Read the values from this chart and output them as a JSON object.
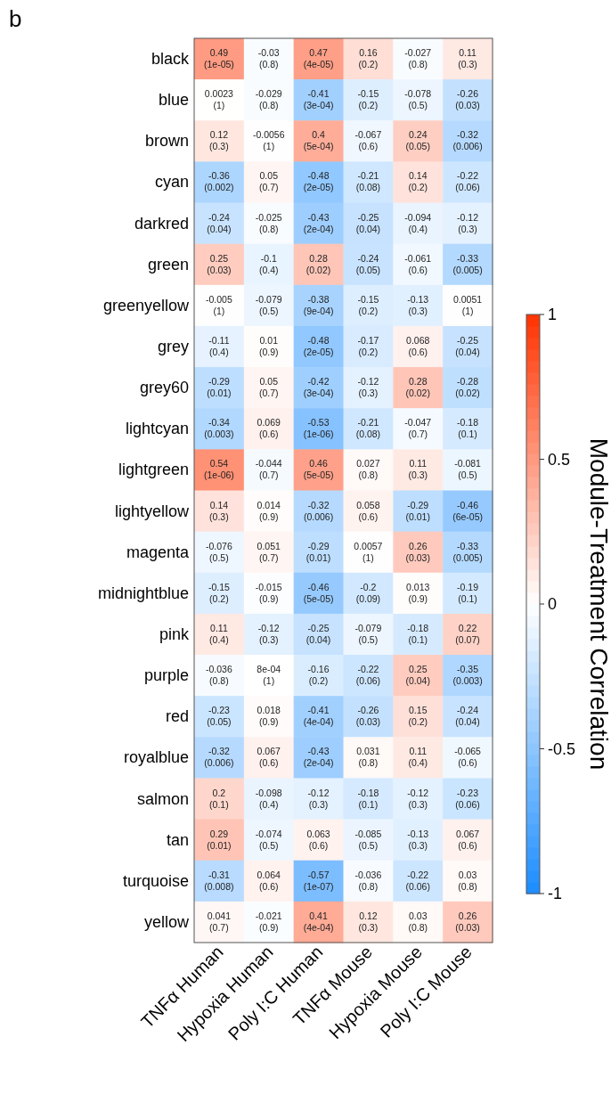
{
  "chart_data": {
    "type": "heatmap",
    "title": "b",
    "clabel": "Module-Treatment Correlation",
    "categories": [
      "TNFα Human",
      "Hypoxia Human",
      "Poly I:C Human",
      "TNFα Mouse",
      "Hypoxia Mouse",
      "Poly I:C Mouse"
    ],
    "y_categories": [
      "black",
      "blue",
      "brown",
      "cyan",
      "darkred",
      "green",
      "greenyellow",
      "grey",
      "grey60",
      "lightcyan",
      "lightgreen",
      "lightyellow",
      "magenta",
      "midnightblue",
      "pink",
      "purple",
      "red",
      "royalblue",
      "salmon",
      "tan",
      "turquoise",
      "yellow"
    ],
    "cells": [
      [
        0.49,
        -0.03,
        0.47,
        0.16,
        -0.027,
        0.11
      ],
      [
        0.0023,
        -0.029,
        -0.41,
        -0.15,
        -0.078,
        -0.26
      ],
      [
        0.12,
        -0.0056,
        0.4,
        -0.067,
        0.24,
        -0.32
      ],
      [
        -0.36,
        0.05,
        -0.48,
        -0.21,
        0.14,
        -0.22
      ],
      [
        -0.24,
        -0.025,
        -0.43,
        -0.25,
        -0.094,
        -0.12
      ],
      [
        0.25,
        -0.1,
        0.28,
        -0.24,
        -0.061,
        -0.33
      ],
      [
        -0.005,
        -0.079,
        -0.38,
        -0.15,
        -0.13,
        0.0051
      ],
      [
        -0.11,
        0.01,
        -0.48,
        -0.17,
        0.068,
        -0.25
      ],
      [
        -0.29,
        0.05,
        -0.42,
        -0.12,
        0.28,
        -0.28
      ],
      [
        -0.34,
        0.069,
        -0.53,
        -0.21,
        -0.047,
        -0.18
      ],
      [
        0.54,
        -0.044,
        0.46,
        0.027,
        0.11,
        -0.081
      ],
      [
        0.14,
        0.014,
        -0.32,
        0.058,
        -0.29,
        -0.46
      ],
      [
        -0.076,
        0.051,
        -0.29,
        0.0057,
        0.26,
        -0.33
      ],
      [
        -0.15,
        -0.015,
        -0.46,
        -0.2,
        0.013,
        -0.19
      ],
      [
        0.11,
        -0.12,
        -0.25,
        -0.079,
        -0.18,
        0.22
      ],
      [
        -0.036,
        0.0008,
        -0.16,
        -0.22,
        0.25,
        -0.35
      ],
      [
        -0.23,
        0.018,
        -0.41,
        -0.26,
        0.15,
        -0.24
      ],
      [
        -0.32,
        0.067,
        -0.43,
        0.031,
        0.11,
        -0.065
      ],
      [
        0.2,
        -0.098,
        -0.12,
        -0.18,
        -0.12,
        -0.23
      ],
      [
        0.29,
        -0.074,
        0.063,
        -0.085,
        -0.13,
        0.067
      ],
      [
        -0.31,
        0.064,
        -0.57,
        -0.036,
        -0.22,
        0.03
      ],
      [
        0.041,
        -0.021,
        0.41,
        0.12,
        0.03,
        0.26
      ]
    ],
    "cell_labels": [
      [
        "0.49\n(1e-05)",
        "-0.03\n(0.8)",
        "0.47\n(4e-05)",
        "0.16\n(0.2)",
        "-0.027\n(0.8)",
        "0.11\n(0.3)"
      ],
      [
        "0.0023\n(1)",
        "-0.029\n(0.8)",
        "-0.41\n(3e-04)",
        "-0.15\n(0.2)",
        "-0.078\n(0.5)",
        "-0.26\n(0.03)"
      ],
      [
        "0.12\n(0.3)",
        "-0.0056\n(1)",
        "0.4\n(5e-04)",
        "-0.067\n(0.6)",
        "0.24\n(0.05)",
        "-0.32\n(0.006)"
      ],
      [
        "-0.36\n(0.002)",
        "0.05\n(0.7)",
        "-0.48\n(2e-05)",
        "-0.21\n(0.08)",
        "0.14\n(0.2)",
        "-0.22\n(0.06)"
      ],
      [
        "-0.24\n(0.04)",
        "-0.025\n(0.8)",
        "-0.43\n(2e-04)",
        "-0.25\n(0.04)",
        "-0.094\n(0.4)",
        "-0.12\n(0.3)"
      ],
      [
        "0.25\n(0.03)",
        "-0.1\n(0.4)",
        "0.28\n(0.02)",
        "-0.24\n(0.05)",
        "-0.061\n(0.6)",
        "-0.33\n(0.005)"
      ],
      [
        "-0.005\n(1)",
        "-0.079\n(0.5)",
        "-0.38\n(9e-04)",
        "-0.15\n(0.2)",
        "-0.13\n(0.3)",
        "0.0051\n(1)"
      ],
      [
        "-0.11\n(0.4)",
        "0.01\n(0.9)",
        "-0.48\n(2e-05)",
        "-0.17\n(0.2)",
        "0.068\n(0.6)",
        "-0.25\n(0.04)"
      ],
      [
        "-0.29\n(0.01)",
        "0.05\n(0.7)",
        "-0.42\n(3e-04)",
        "-0.12\n(0.3)",
        "0.28\n(0.02)",
        "-0.28\n(0.02)"
      ],
      [
        "-0.34\n(0.003)",
        "0.069\n(0.6)",
        "-0.53\n(1e-06)",
        "-0.21\n(0.08)",
        "-0.047\n(0.7)",
        "-0.18\n(0.1)"
      ],
      [
        "0.54\n(1e-06)",
        "-0.044\n(0.7)",
        "0.46\n(5e-05)",
        "0.027\n(0.8)",
        "0.11\n(0.3)",
        "-0.081\n(0.5)"
      ],
      [
        "0.14\n(0.3)",
        "0.014\n(0.9)",
        "-0.32\n(0.006)",
        "0.058\n(0.6)",
        "-0.29\n(0.01)",
        "-0.46\n(6e-05)"
      ],
      [
        "-0.076\n(0.5)",
        "0.051\n(0.7)",
        "-0.29\n(0.01)",
        "0.0057\n(1)",
        "0.26\n(0.03)",
        "-0.33\n(0.005)"
      ],
      [
        "-0.15\n(0.2)",
        "-0.015\n(0.9)",
        "-0.46\n(5e-05)",
        "-0.2\n(0.09)",
        "0.013\n(0.9)",
        "-0.19\n(0.1)"
      ],
      [
        "0.11\n(0.4)",
        "-0.12\n(0.3)",
        "-0.25\n(0.04)",
        "-0.079\n(0.5)",
        "-0.18\n(0.1)",
        "0.22\n(0.07)"
      ],
      [
        "-0.036\n(0.8)",
        "8e-04\n(1)",
        "-0.16\n(0.2)",
        "-0.22\n(0.06)",
        "0.25\n(0.04)",
        "-0.35\n(0.003)"
      ],
      [
        "-0.23\n(0.05)",
        "0.018\n(0.9)",
        "-0.41\n(4e-04)",
        "-0.26\n(0.03)",
        "0.15\n(0.2)",
        "-0.24\n(0.04)"
      ],
      [
        "-0.32\n(0.006)",
        "0.067\n(0.6)",
        "-0.43\n(2e-04)",
        "0.031\n(0.8)",
        "0.11\n(0.4)",
        "-0.065\n(0.6)"
      ],
      [
        "0.2\n(0.1)",
        "-0.098\n(0.4)",
        "-0.12\n(0.3)",
        "-0.18\n(0.1)",
        "-0.12\n(0.3)",
        "-0.23\n(0.06)"
      ],
      [
        "0.29\n(0.01)",
        "-0.074\n(0.5)",
        "0.063\n(0.6)",
        "-0.085\n(0.5)",
        "-0.13\n(0.3)",
        "0.067\n(0.6)"
      ],
      [
        "-0.31\n(0.008)",
        "0.064\n(0.6)",
        "-0.57\n(1e-07)",
        "-0.036\n(0.8)",
        "-0.22\n(0.06)",
        "0.03\n(0.8)"
      ],
      [
        "0.041\n(0.7)",
        "-0.021\n(0.9)",
        "0.41\n(4e-04)",
        "0.12\n(0.3)",
        "0.03\n(0.8)",
        "0.26\n(0.03)"
      ]
    ],
    "clim": [
      -1,
      1
    ],
    "cticks": [
      1,
      0.5,
      0,
      -0.5,
      -1
    ]
  }
}
